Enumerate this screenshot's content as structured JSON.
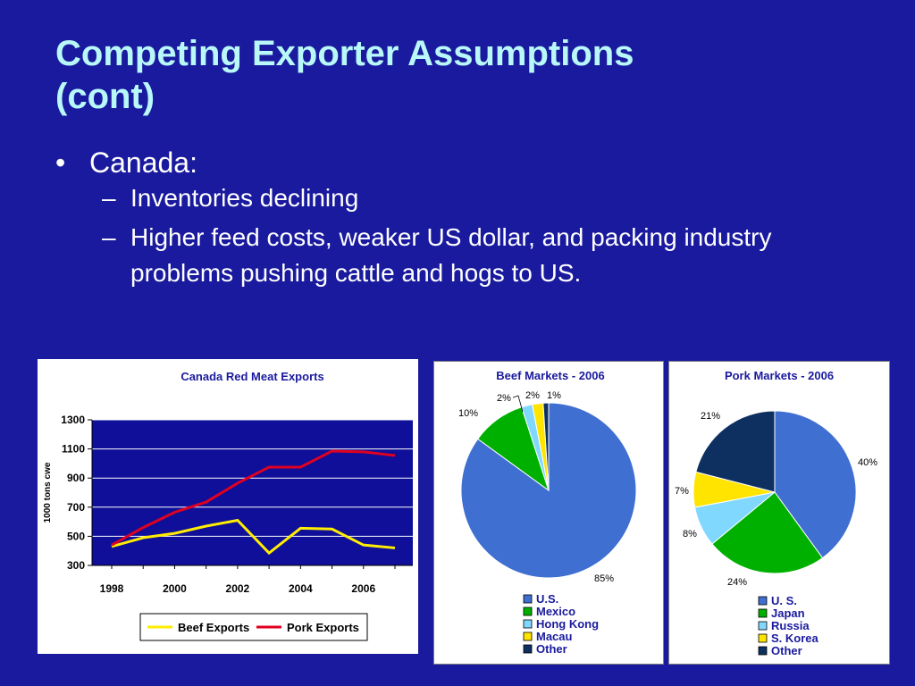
{
  "slide": {
    "title_line1": "Competing Exporter Assumptions",
    "title_line2": "(cont)",
    "bullet": "Canada:",
    "bullet_marker": "•",
    "dash": "–",
    "sub_bullets": [
      "Inventories declining",
      "Higher feed costs, weaker US dollar, and packing industry problems pushing cattle and hogs to US."
    ]
  },
  "colors": {
    "background": "#1a1a9e",
    "title": "#b9f8f8",
    "beef_line": "#ffee00",
    "pork_line": "#e00020",
    "plot_bg": "#0f0f99"
  },
  "chart_data": [
    {
      "type": "line",
      "title": "Canada Red Meat Exports",
      "ylabel": "1000 tons cwe",
      "xlabel": "",
      "ylim": [
        300,
        1300
      ],
      "yticks": [
        "1300",
        "1100",
        "900",
        "700",
        "500",
        "300"
      ],
      "xticks": [
        "1998",
        "2000",
        "2002",
        "2004",
        "2006"
      ],
      "grid": true,
      "legend": "bottom",
      "x": [
        1998,
        1999,
        2000,
        2001,
        2002,
        2003,
        2004,
        2005,
        2006,
        2007
      ],
      "series": [
        {
          "name": "Beef Exports",
          "values": [
            430,
            490,
            520,
            570,
            610,
            385,
            555,
            550,
            440,
            420
          ]
        },
        {
          "name": "Pork Exports",
          "values": [
            440,
            560,
            665,
            735,
            865,
            975,
            975,
            1085,
            1080,
            1055
          ]
        }
      ]
    },
    {
      "type": "pie",
      "title": "Beef Markets - 2006",
      "legend": "bottom",
      "slices": [
        {
          "label": "U.S.",
          "value": 85,
          "display": "85%",
          "color": "#3f6fd0"
        },
        {
          "label": "Mexico",
          "value": 10,
          "display": "10%",
          "color": "#00b000"
        },
        {
          "label": "Hong Kong",
          "value": 2,
          "display": "2%",
          "color": "#80d8ff"
        },
        {
          "label": "Macau",
          "value": 2,
          "display": "2%",
          "color": "#ffe400"
        },
        {
          "label": "Other",
          "value": 1,
          "display": "1%",
          "color": "#0d3060"
        }
      ]
    },
    {
      "type": "pie",
      "title": "Pork Markets - 2006",
      "legend": "bottom",
      "slices": [
        {
          "label": "U. S.",
          "value": 40,
          "display": "40%",
          "color": "#3f6fd0"
        },
        {
          "label": "Japan",
          "value": 24,
          "display": "24%",
          "color": "#00b000"
        },
        {
          "label": "Russia",
          "value": 8,
          "display": "8%",
          "color": "#80d8ff"
        },
        {
          "label": "S. Korea",
          "value": 7,
          "display": "7%",
          "color": "#ffe400"
        },
        {
          "label": "Other",
          "value": 21,
          "display": "21%",
          "color": "#0d3060"
        }
      ]
    }
  ]
}
